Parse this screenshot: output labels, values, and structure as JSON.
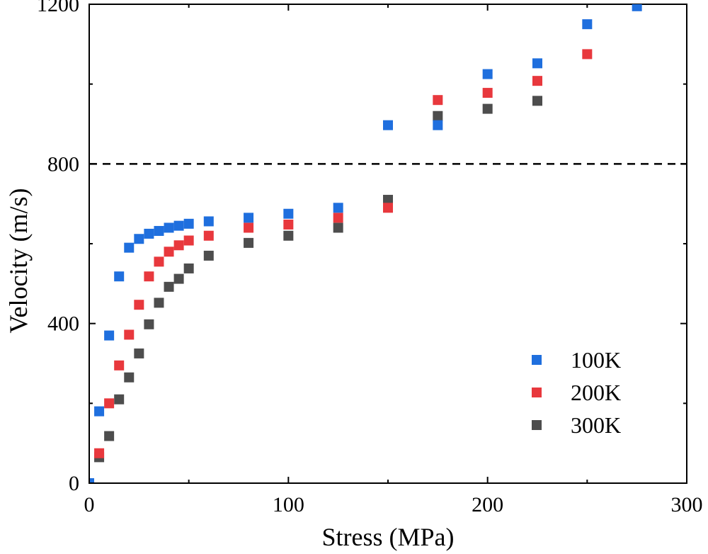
{
  "chart_data": {
    "type": "scatter",
    "title": "",
    "xlabel": "Stress (MPa)",
    "ylabel": "Velocity (m/s)",
    "xlim": [
      0,
      300
    ],
    "ylim": [
      0,
      1200
    ],
    "x_ticks": [
      0,
      100,
      200,
      300
    ],
    "y_ticks": [
      0,
      400,
      800,
      1200
    ],
    "x_tick_labels": [
      "0",
      "100",
      "200",
      "300"
    ],
    "y_tick_labels": [
      "0",
      "400",
      "800",
      "1200"
    ],
    "grid": false,
    "legend_position": "bottom-right",
    "reference_line": {
      "orientation": "horizontal",
      "y": 800,
      "style": "dashed",
      "color": "#000000"
    },
    "series": [
      {
        "name": "100K",
        "color": "#1f6fde",
        "marker": "square",
        "x": [
          0,
          5,
          10,
          15,
          20,
          25,
          30,
          35,
          40,
          45,
          50,
          60,
          80,
          100,
          125,
          150,
          175,
          200,
          225,
          250,
          275
        ],
        "y": [
          0,
          180,
          370,
          518,
          590,
          612,
          625,
          632,
          640,
          645,
          650,
          656,
          665,
          675,
          690,
          897,
          897,
          1025,
          1052,
          1150,
          1195
        ]
      },
      {
        "name": "200K",
        "color": "#e8383d",
        "marker": "square",
        "x": [
          5,
          10,
          15,
          20,
          25,
          30,
          35,
          40,
          45,
          50,
          60,
          80,
          100,
          125,
          150,
          175,
          200,
          250,
          225
        ],
        "y": [
          75,
          200,
          295,
          372,
          447,
          518,
          555,
          580,
          596,
          608,
          620,
          640,
          648,
          665,
          690,
          960,
          978,
          1075,
          1008
        ]
      },
      {
        "name": "300K",
        "color": "#4d4d4d",
        "marker": "square",
        "x": [
          5,
          10,
          15,
          20,
          25,
          30,
          35,
          40,
          45,
          50,
          60,
          80,
          100,
          125,
          150,
          175,
          200,
          225
        ],
        "y": [
          65,
          118,
          210,
          265,
          325,
          398,
          452,
          492,
          512,
          538,
          570,
          602,
          620,
          640,
          710,
          920,
          938,
          958
        ]
      }
    ]
  }
}
